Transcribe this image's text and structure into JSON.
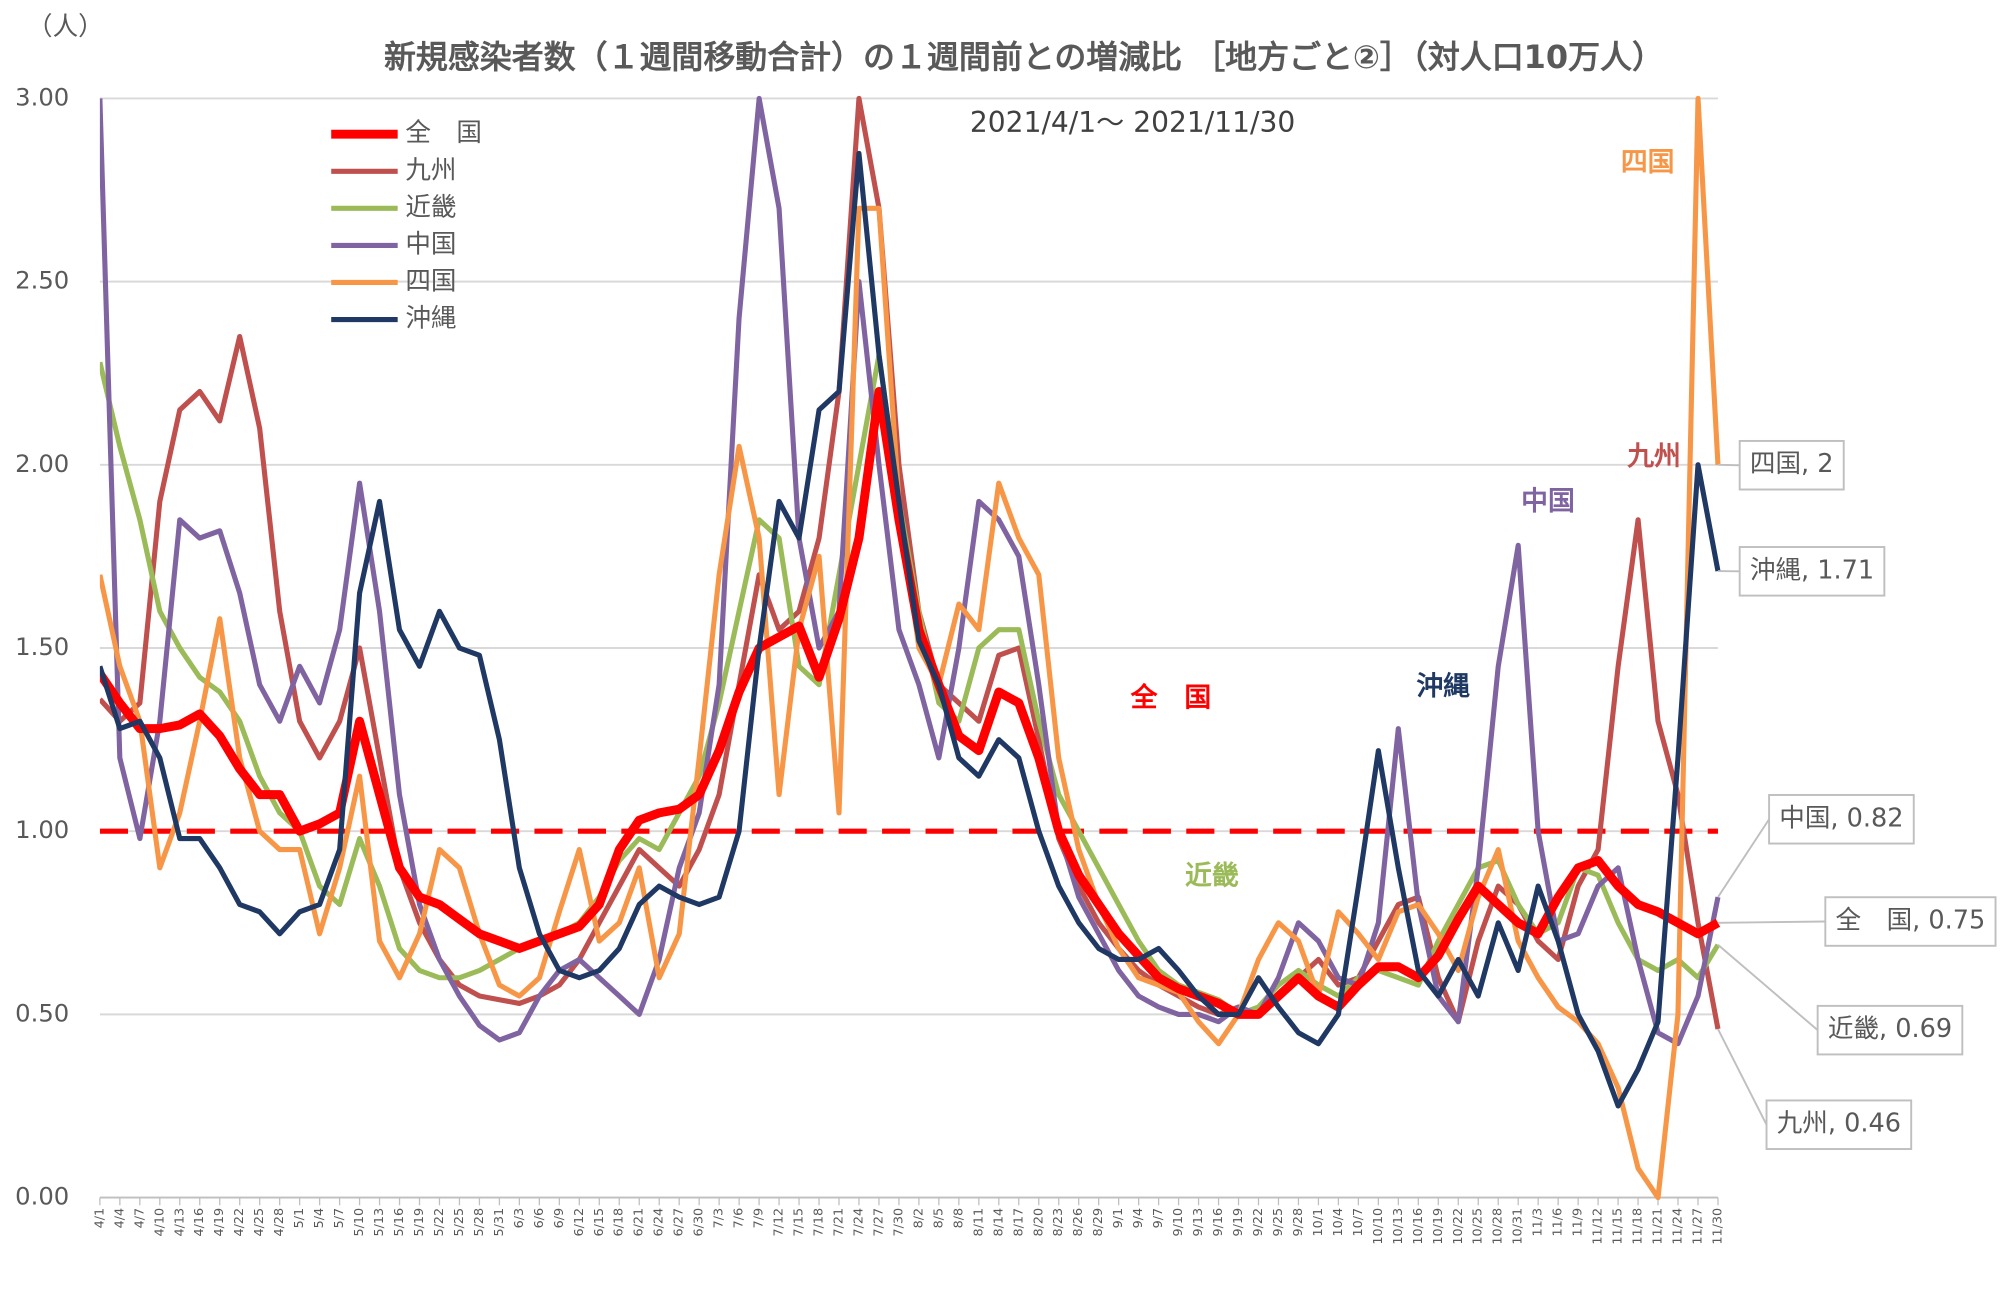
{
  "chart_data": {
    "type": "line",
    "title": "新規感染者数（１週間移動合計）の１週間前との増減比 ［地方ごと②］（対人口10万人）",
    "subtitle": "2021/4/1～ 2021/11/30",
    "y_unit": "（人）",
    "categories": [
      "4/1",
      "4/4",
      "4/7",
      "4/10",
      "4/13",
      "4/16",
      "4/19",
      "4/22",
      "4/25",
      "4/28",
      "5/1",
      "5/4",
      "5/7",
      "5/10",
      "5/13",
      "5/16",
      "5/19",
      "5/22",
      "5/25",
      "5/28",
      "5/31",
      "6/3",
      "6/6",
      "6/9",
      "6/12",
      "6/15",
      "6/18",
      "6/21",
      "6/24",
      "6/27",
      "6/30",
      "7/3",
      "7/6",
      "7/9",
      "7/12",
      "7/15",
      "7/18",
      "7/21",
      "7/24",
      "7/27",
      "7/30",
      "8/2",
      "8/5",
      "8/8",
      "8/11",
      "8/14",
      "8/17",
      "8/20",
      "8/23",
      "8/26",
      "8/29",
      "9/1",
      "9/4",
      "9/7",
      "9/10",
      "9/13",
      "9/16",
      "9/19",
      "9/22",
      "9/25",
      "9/28",
      "10/1",
      "10/4",
      "10/7",
      "10/10",
      "10/13",
      "10/16",
      "10/19",
      "10/22",
      "10/25",
      "10/28",
      "10/31",
      "11/3",
      "11/6",
      "11/9",
      "11/12",
      "11/15",
      "11/18",
      "11/21",
      "11/24",
      "11/27",
      "11/30"
    ],
    "series": [
      {
        "name": "全　国",
        "color": "#ff0000",
        "end_label": "全　国, 0.75",
        "values": [
          1.43,
          1.35,
          1.28,
          1.28,
          1.29,
          1.32,
          1.26,
          1.17,
          1.1,
          1.1,
          1.0,
          1.02,
          1.05,
          1.3,
          1.1,
          0.9,
          0.82,
          0.8,
          0.76,
          0.72,
          0.7,
          0.68,
          0.7,
          0.72,
          0.74,
          0.8,
          0.95,
          1.03,
          1.05,
          1.06,
          1.1,
          1.22,
          1.38,
          1.5,
          1.53,
          1.56,
          1.42,
          1.58,
          1.8,
          2.2,
          1.85,
          1.55,
          1.4,
          1.26,
          1.22,
          1.38,
          1.35,
          1.2,
          1.0,
          0.88,
          0.8,
          0.72,
          0.66,
          0.6,
          0.57,
          0.55,
          0.53,
          0.5,
          0.5,
          0.55,
          0.6,
          0.55,
          0.52,
          0.58,
          0.63,
          0.63,
          0.6,
          0.66,
          0.76,
          0.85,
          0.8,
          0.75,
          0.72,
          0.82,
          0.9,
          0.92,
          0.85,
          0.8,
          0.78,
          0.75,
          0.72,
          0.75
        ]
      },
      {
        "name": "九州",
        "color": "#c0504d",
        "end_label": "九州, 0.46",
        "values": [
          1.36,
          1.3,
          1.35,
          1.9,
          2.15,
          2.2,
          2.12,
          2.35,
          2.1,
          1.6,
          1.3,
          1.2,
          1.3,
          1.5,
          1.2,
          0.9,
          0.75,
          0.65,
          0.58,
          0.55,
          0.54,
          0.53,
          0.55,
          0.58,
          0.65,
          0.75,
          0.85,
          0.95,
          0.9,
          0.85,
          0.95,
          1.1,
          1.4,
          1.7,
          1.55,
          1.6,
          1.8,
          2.2,
          3.0,
          2.7,
          2.0,
          1.6,
          1.4,
          1.35,
          1.3,
          1.48,
          1.5,
          1.25,
          0.98,
          0.85,
          0.75,
          0.68,
          0.62,
          0.58,
          0.55,
          0.52,
          0.5,
          0.52,
          0.5,
          0.55,
          0.6,
          0.65,
          0.58,
          0.6,
          0.7,
          0.8,
          0.82,
          0.6,
          0.48,
          0.7,
          0.85,
          0.8,
          0.7,
          0.65,
          0.85,
          0.95,
          1.45,
          1.85,
          1.3,
          1.1,
          0.75,
          0.46
        ]
      },
      {
        "name": "近畿",
        "color": "#9bbb59",
        "end_label": "近畿, 0.69",
        "values": [
          2.28,
          2.05,
          1.85,
          1.6,
          1.5,
          1.42,
          1.38,
          1.3,
          1.15,
          1.05,
          1.0,
          0.85,
          0.8,
          0.98,
          0.85,
          0.68,
          0.62,
          0.6,
          0.6,
          0.62,
          0.65,
          0.68,
          0.7,
          0.72,
          0.75,
          0.82,
          0.92,
          0.98,
          0.95,
          1.05,
          1.15,
          1.35,
          1.6,
          1.85,
          1.8,
          1.45,
          1.4,
          1.7,
          2.0,
          2.3,
          1.9,
          1.6,
          1.35,
          1.3,
          1.5,
          1.55,
          1.55,
          1.3,
          1.1,
          1.0,
          0.9,
          0.8,
          0.7,
          0.62,
          0.58,
          0.56,
          0.54,
          0.5,
          0.52,
          0.58,
          0.62,
          0.58,
          0.55,
          0.6,
          0.62,
          0.6,
          0.58,
          0.7,
          0.8,
          0.9,
          0.92,
          0.8,
          0.72,
          0.75,
          0.9,
          0.88,
          0.75,
          0.65,
          0.62,
          0.65,
          0.6,
          0.69
        ]
      },
      {
        "name": "中国",
        "color": "#8064a2",
        "end_label": "中国, 0.82",
        "values": [
          3.0,
          1.2,
          0.98,
          1.3,
          1.85,
          1.8,
          1.82,
          1.65,
          1.4,
          1.3,
          1.45,
          1.35,
          1.55,
          1.95,
          1.6,
          1.1,
          0.8,
          0.65,
          0.55,
          0.47,
          0.43,
          0.45,
          0.55,
          0.62,
          0.65,
          0.6,
          0.55,
          0.5,
          0.65,
          0.9,
          1.05,
          1.4,
          2.4,
          3.0,
          2.7,
          1.8,
          1.5,
          1.6,
          2.5,
          2.0,
          1.55,
          1.4,
          1.2,
          1.5,
          1.9,
          1.85,
          1.75,
          1.4,
          1.0,
          0.82,
          0.72,
          0.62,
          0.55,
          0.52,
          0.5,
          0.5,
          0.48,
          0.52,
          0.5,
          0.6,
          0.75,
          0.7,
          0.6,
          0.58,
          0.75,
          1.28,
          0.8,
          0.55,
          0.48,
          0.9,
          1.45,
          1.78,
          1.0,
          0.7,
          0.72,
          0.85,
          0.9,
          0.65,
          0.45,
          0.42,
          0.55,
          0.82
        ]
      },
      {
        "name": "四国",
        "color": "#f79646",
        "end_label": "四国, 2",
        "values": [
          1.7,
          1.45,
          1.3,
          0.9,
          1.05,
          1.3,
          1.58,
          1.2,
          1.0,
          0.95,
          0.95,
          0.72,
          0.9,
          1.15,
          0.7,
          0.6,
          0.72,
          0.95,
          0.9,
          0.72,
          0.58,
          0.55,
          0.6,
          0.78,
          0.95,
          0.7,
          0.75,
          0.9,
          0.6,
          0.72,
          1.2,
          1.7,
          2.05,
          1.8,
          1.1,
          1.55,
          1.75,
          1.05,
          2.7,
          2.7,
          1.9,
          1.5,
          1.4,
          1.62,
          1.55,
          1.95,
          1.8,
          1.7,
          1.2,
          0.95,
          0.8,
          0.68,
          0.6,
          0.58,
          0.56,
          0.48,
          0.42,
          0.5,
          0.65,
          0.75,
          0.7,
          0.55,
          0.78,
          0.72,
          0.65,
          0.78,
          0.8,
          0.72,
          0.62,
          0.82,
          0.95,
          0.7,
          0.6,
          0.52,
          0.48,
          0.42,
          0.3,
          0.08,
          0.0,
          0.5,
          3.0,
          2
        ]
      },
      {
        "name": "沖縄",
        "color": "#1f3864",
        "end_label": "沖縄, 1.71",
        "values": [
          1.45,
          1.28,
          1.3,
          1.2,
          0.98,
          0.98,
          0.9,
          0.8,
          0.78,
          0.72,
          0.78,
          0.8,
          0.95,
          1.65,
          1.9,
          1.55,
          1.45,
          1.6,
          1.5,
          1.48,
          1.25,
          0.9,
          0.72,
          0.62,
          0.6,
          0.62,
          0.68,
          0.8,
          0.85,
          0.82,
          0.8,
          0.82,
          1.0,
          1.5,
          1.9,
          1.8,
          2.15,
          2.2,
          2.85,
          2.3,
          1.9,
          1.52,
          1.4,
          1.2,
          1.15,
          1.25,
          1.2,
          1.0,
          0.85,
          0.75,
          0.68,
          0.65,
          0.65,
          0.68,
          0.62,
          0.55,
          0.5,
          0.5,
          0.6,
          0.52,
          0.45,
          0.42,
          0.5,
          0.85,
          1.22,
          0.9,
          0.62,
          0.55,
          0.65,
          0.55,
          0.75,
          0.62,
          0.85,
          0.7,
          0.5,
          0.4,
          0.25,
          0.35,
          0.48,
          1.2,
          2.0,
          1.71
        ]
      }
    ],
    "annotations": [
      {
        "text": "全　国",
        "color": "#ff0000"
      },
      {
        "text": "九州",
        "color": "#c0504d"
      },
      {
        "text": "近畿",
        "color": "#9bbb59"
      },
      {
        "text": "中国",
        "color": "#8064a2"
      },
      {
        "text": "四国",
        "color": "#f79646"
      },
      {
        "text": "沖縄",
        "color": "#1f3864"
      }
    ],
    "reference_line": {
      "value": 1.0,
      "color": "#ff0000"
    },
    "ylim": [
      0,
      3
    ],
    "yticks": [
      {
        "value": 0,
        "label": "0.00"
      },
      {
        "value": 0.5,
        "label": "0.50"
      },
      {
        "value": 1,
        "label": "1.00"
      },
      {
        "value": 1.5,
        "label": "1.50"
      },
      {
        "value": 2,
        "label": "2.00"
      },
      {
        "value": 2.5,
        "label": "2.50"
      },
      {
        "value": 3,
        "label": "3.00"
      }
    ],
    "grid": true,
    "legend": "upper left"
  }
}
